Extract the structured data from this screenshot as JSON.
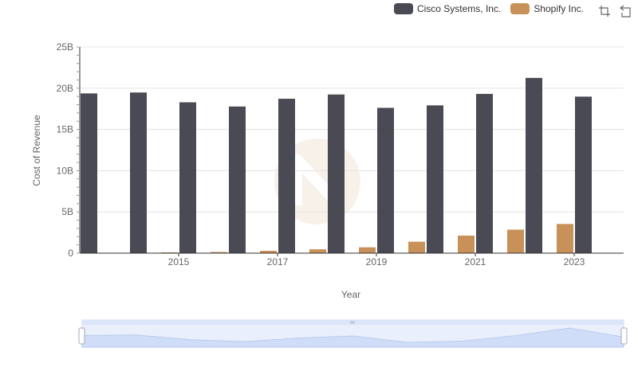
{
  "legend": {
    "items": [
      {
        "label": "Cisco Systems, Inc.",
        "color": "#4a4a55"
      },
      {
        "label": "Shopify Inc.",
        "color": "#c8915a"
      }
    ]
  },
  "toolbar": {
    "icons": [
      "zoom-select-icon",
      "zoom-reset-icon"
    ]
  },
  "chart_data": {
    "type": "bar",
    "title": "",
    "xlabel": "Year",
    "ylabel": "Cost of Revenue",
    "categories": [
      "2014",
      "2015",
      "2016",
      "2017",
      "2018",
      "2019",
      "2020",
      "2021",
      "2022",
      "2023",
      "2024"
    ],
    "x_tick_labels": [
      "2015",
      "2017",
      "2019",
      "2021",
      "2023"
    ],
    "y_tick_labels": [
      "0",
      "5B",
      "10B",
      "15B",
      "20B",
      "25B"
    ],
    "ylim": [
      0,
      25000000000
    ],
    "grid": true,
    "legend_position": "top-right",
    "series": [
      {
        "name": "Cisco Systems, Inc.",
        "color": "#4a4a55",
        "values": [
          19370000000,
          19480000000,
          18290000000,
          17780000000,
          18720000000,
          19240000000,
          17620000000,
          17920000000,
          19310000000,
          21250000000,
          18980000000
        ]
      },
      {
        "name": "Shopify Inc.",
        "color": "#c8915a",
        "values": [
          null,
          50000000,
          140000000,
          290000000,
          470000000,
          710000000,
          1390000000,
          2130000000,
          2850000000,
          3540000000,
          null
        ]
      }
    ]
  }
}
